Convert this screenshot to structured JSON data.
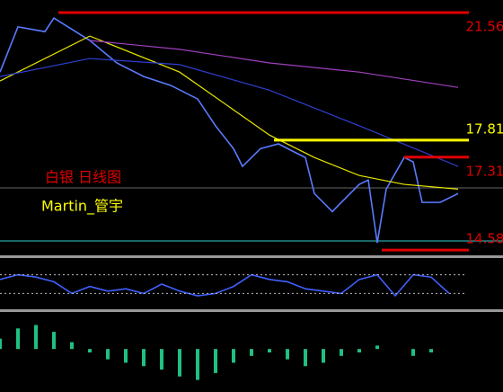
{
  "chart_data": [
    {
      "type": "line",
      "annotations": [
        "白银 日线图",
        "Martin_管宇"
      ],
      "annotation_colors": [
        "#e00000",
        "#ffff00"
      ],
      "xlim": [
        0,
        52
      ],
      "ylim": [
        14.45,
        21.93
      ],
      "series": [
        {
          "color": "#5a7bff",
          "x": [
            0,
            2,
            5,
            6,
            10,
            13,
            16,
            19,
            22,
            24,
            26,
            27,
            29,
            31,
            33,
            34,
            35,
            37,
            38,
            40,
            41,
            42,
            43,
            45,
            46,
            47,
            49,
            51
          ],
          "values": [
            19.81,
            21.14,
            21.0,
            21.4,
            20.74,
            20.08,
            19.68,
            19.42,
            19.02,
            18.23,
            17.56,
            17.04,
            17.56,
            17.7,
            17.43,
            17.3,
            16.24,
            15.71,
            15.98,
            16.51,
            16.64,
            14.79,
            16.37,
            17.3,
            17.17,
            15.98,
            15.98,
            16.24
          ]
        },
        {
          "color": "#e8e800",
          "x": [
            0,
            10,
            20,
            30,
            35,
            40,
            45,
            51
          ],
          "values": [
            19.55,
            20.87,
            19.81,
            17.96,
            17.3,
            16.77,
            16.51,
            16.37
          ]
        },
        {
          "color": "#a040c0",
          "x": [
            10,
            20,
            30,
            40,
            51
          ],
          "values": [
            20.74,
            20.48,
            20.08,
            19.81,
            19.36
          ]
        },
        {
          "color": "#2f3fd0",
          "x": [
            0,
            10,
            20,
            30,
            40,
            51
          ],
          "values": [
            19.68,
            20.21,
            20.03,
            19.28,
            18.23,
            17.04
          ]
        }
      ],
      "levels": [
        {
          "value": 21.56,
          "x_start": 6.5,
          "color": "#e00000"
        },
        {
          "value": 17.81,
          "x_start": 30.5,
          "color": "#ffff00"
        },
        {
          "value": 17.31,
          "x_start": 45,
          "color": "#e00000"
        },
        {
          "value": 14.58,
          "x_start": 42.5,
          "color": "#e00000"
        }
      ]
    },
    {
      "type": "line",
      "xlim": [
        0,
        52
      ],
      "ylim": [
        0,
        100
      ],
      "guides": [
        70,
        30
      ],
      "series": [
        {
          "color": "#4060ff",
          "x": [
            0,
            2,
            4,
            6,
            8,
            10,
            12,
            14,
            16,
            18,
            20,
            22,
            24,
            26,
            28,
            30,
            32,
            34,
            36,
            38,
            40,
            42,
            44,
            46,
            48,
            50
          ],
          "values": [
            60,
            70,
            65,
            55,
            30,
            45,
            35,
            40,
            30,
            50,
            35,
            25,
            30,
            45,
            70,
            60,
            55,
            40,
            35,
            30,
            60,
            70,
            25,
            70,
            65,
            30
          ]
        }
      ]
    },
    {
      "type": "bar",
      "xlim": [
        0,
        52
      ],
      "ylim": [
        -1.2,
        1.0
      ],
      "color": "#20c080",
      "x": [
        0,
        2,
        4,
        6,
        8,
        10,
        12,
        14,
        16,
        18,
        20,
        22,
        24,
        26,
        28,
        30,
        32,
        34,
        36,
        38,
        40,
        42,
        44,
        46,
        48,
        50
      ],
      "values": [
        0.3,
        0.6,
        0.7,
        0.5,
        0.2,
        -0.1,
        -0.3,
        -0.4,
        -0.5,
        -0.6,
        -0.8,
        -0.9,
        -0.7,
        -0.4,
        -0.2,
        -0.1,
        -0.3,
        -0.5,
        -0.4,
        -0.2,
        -0.1,
        0.1,
        0.0,
        -0.2,
        -0.1,
        0.0
      ]
    }
  ]
}
